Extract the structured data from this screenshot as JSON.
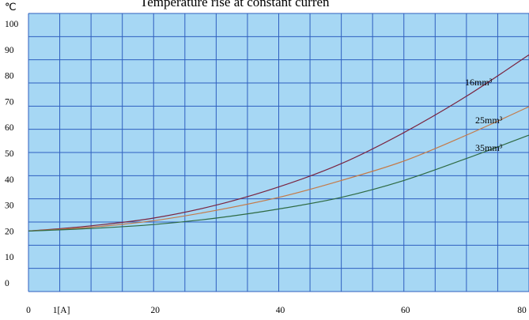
{
  "chart_data": {
    "type": "line",
    "title": "Temperature rise at constant curren",
    "y_unit": "℃",
    "x_unit_tick": "1[A]",
    "xlim": [
      0,
      80
    ],
    "ylim": [
      0,
      100
    ],
    "grid": true,
    "x_ticks": [
      {
        "value": 0,
        "label": "0"
      },
      {
        "value": 5,
        "label": "1[A]"
      },
      {
        "value": 20,
        "label": "20"
      },
      {
        "value": 40,
        "label": "40"
      },
      {
        "value": 60,
        "label": "60"
      },
      {
        "value": 80,
        "label": "80"
      }
    ],
    "y_ticks": [
      0,
      10,
      20,
      30,
      40,
      50,
      60,
      70,
      80,
      90,
      100
    ],
    "series": [
      {
        "name": "16mm³",
        "color": "#7a2440",
        "x": [
          0,
          10,
          20,
          30,
          40,
          50,
          60,
          70,
          80
        ],
        "y": [
          20,
          22,
          25,
          30,
          37,
          46,
          58,
          72,
          88
        ]
      },
      {
        "name": "25mm³",
        "color": "#c47a48",
        "x": [
          0,
          10,
          20,
          30,
          40,
          50,
          60,
          70,
          80
        ],
        "y": [
          20,
          21.5,
          24,
          28,
          33,
          39.5,
          47,
          57,
          68
        ]
      },
      {
        "name": "35mm³",
        "color": "#2e6a42",
        "x": [
          0,
          10,
          20,
          30,
          40,
          50,
          60,
          70,
          80
        ],
        "y": [
          20,
          21,
          22.5,
          25,
          28.5,
          33,
          39.5,
          48,
          57
        ]
      }
    ]
  }
}
